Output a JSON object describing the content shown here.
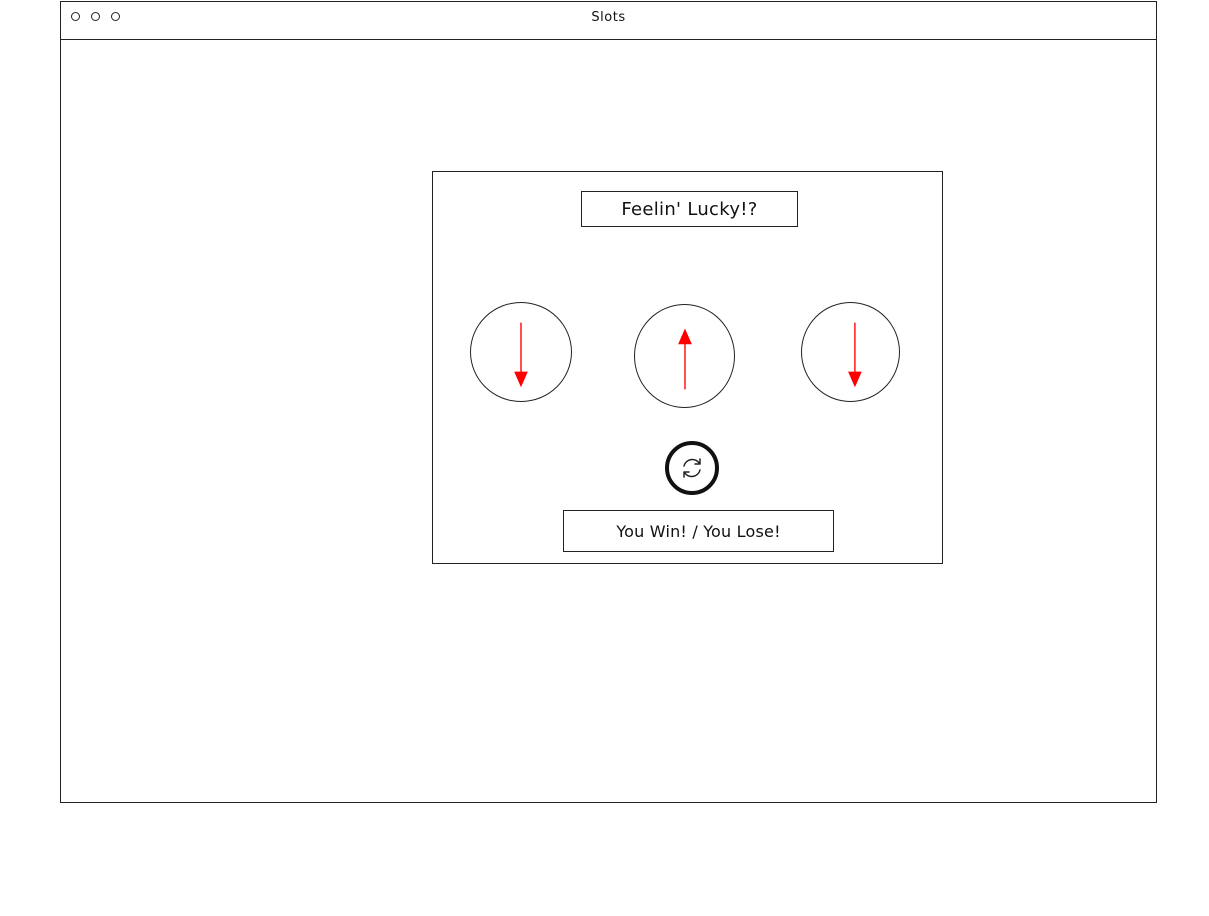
{
  "window": {
    "title": "Slots",
    "controls": [
      "circle-icon",
      "circle-icon",
      "circle-icon"
    ]
  },
  "game": {
    "headline": "Feelin' Lucky!?",
    "reels": [
      {
        "icon": "arrow-down-icon",
        "direction": "down"
      },
      {
        "icon": "arrow-up-icon",
        "direction": "up"
      },
      {
        "icon": "arrow-down-icon",
        "direction": "down"
      }
    ],
    "spin_icon": "refresh-icon",
    "result_text": "You Win! / You Lose!"
  },
  "colors": {
    "arrow": "#ff0000",
    "stroke": "#222222",
    "background": "#ffffff"
  }
}
